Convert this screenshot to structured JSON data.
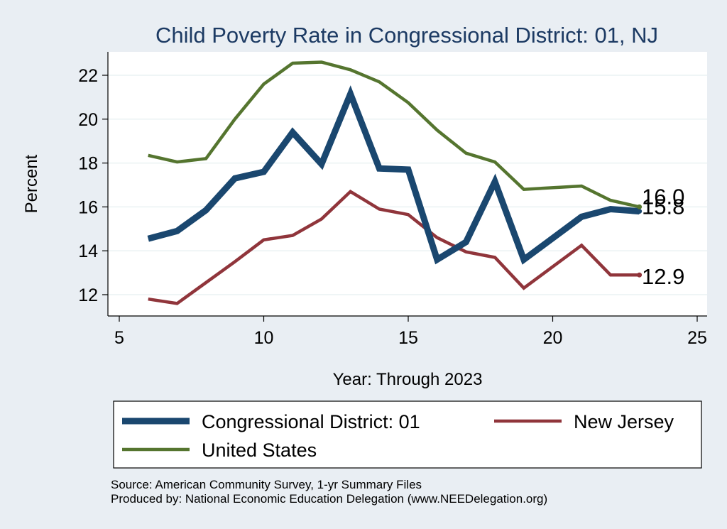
{
  "chart_data": {
    "type": "line",
    "title": "Child Poverty Rate in Congressional District:  01, NJ",
    "xlabel": "Year: Through 2023",
    "ylabel": "Percent",
    "xlim": [
      5,
      25
    ],
    "ylim": [
      11.3,
      23.2
    ],
    "xticks": [
      "5",
      "10",
      "15",
      "20",
      "25"
    ],
    "yticks": [
      "12",
      "14",
      "16",
      "18",
      "20",
      "22"
    ],
    "grid": "horizontal",
    "legend_position": "bottom",
    "colors": {
      "background": "#e9eef3",
      "title": "#1c3a63"
    },
    "series": [
      {
        "name": "Congressional District:  01",
        "color": "#1a476f",
        "x": [
          6,
          7,
          8,
          9,
          10,
          11,
          12,
          13,
          14,
          15,
          16,
          17,
          18,
          19,
          21,
          22,
          23
        ],
        "values": [
          14.55,
          14.9,
          15.85,
          17.3,
          17.6,
          19.4,
          17.95,
          21.15,
          17.75,
          17.7,
          13.6,
          14.4,
          17.15,
          13.6,
          15.55,
          15.9,
          15.8
        ],
        "end_label": "15.8"
      },
      {
        "name": "New Jersey",
        "color": "#90353b",
        "x": [
          6,
          7,
          8,
          9,
          10,
          11,
          12,
          13,
          14,
          15,
          16,
          17,
          18,
          19,
          21,
          22,
          23
        ],
        "values": [
          11.8,
          11.6,
          12.55,
          13.5,
          14.5,
          14.7,
          15.45,
          16.7,
          15.9,
          15.65,
          14.6,
          13.95,
          13.7,
          12.3,
          14.25,
          12.9,
          12.9
        ],
        "end_label": "12.9"
      },
      {
        "name": "United States",
        "color": "#55752f",
        "x": [
          6,
          7,
          8,
          9,
          10,
          11,
          12,
          13,
          14,
          15,
          16,
          17,
          18,
          19,
          21,
          22,
          23
        ],
        "values": [
          18.35,
          18.05,
          18.2,
          20.0,
          21.6,
          22.55,
          22.6,
          22.25,
          21.7,
          20.75,
          19.5,
          18.45,
          18.05,
          16.8,
          16.95,
          16.3,
          16.0
        ],
        "end_label": "16.0"
      }
    ],
    "source_lines": [
      "Source: American Community Survey, 1-yr Summary Files",
      "Produced by: National Economic Education Delegation (www.NEEDelegation.org)"
    ]
  }
}
